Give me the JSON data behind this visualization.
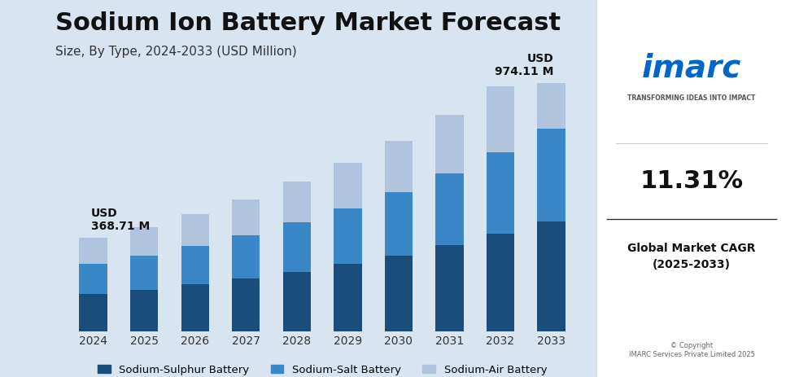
{
  "title": "Sodium Ion Battery Market Forecast",
  "subtitle": "Size, By Type, 2024-2033 (USD Million)",
  "years": [
    2024,
    2025,
    2026,
    2027,
    2028,
    2029,
    2030,
    2031,
    2032,
    2033
  ],
  "sulphur": [
    148,
    165,
    185,
    208,
    235,
    265,
    298,
    338,
    382,
    432
  ],
  "salt": [
    118,
    133,
    150,
    170,
    193,
    218,
    248,
    282,
    320,
    362
  ],
  "air": [
    103,
    112,
    125,
    140,
    158,
    178,
    202,
    228,
    258,
    180
  ],
  "label_2024": "USD\n368.71 M",
  "label_2033": "USD\n974.11 M",
  "colors": {
    "sulphur": "#1a4d7a",
    "salt": "#3a87c8",
    "air": "#b0c4de"
  },
  "legend_labels": [
    "Sodium-Sulphur Battery",
    "Sodium-Salt Battery",
    "Sodium-Air Battery"
  ],
  "bg_color": "#d8e4f0",
  "plot_bg": "#d8e4f0",
  "title_fontsize": 22,
  "subtitle_fontsize": 11,
  "bar_width": 0.55
}
